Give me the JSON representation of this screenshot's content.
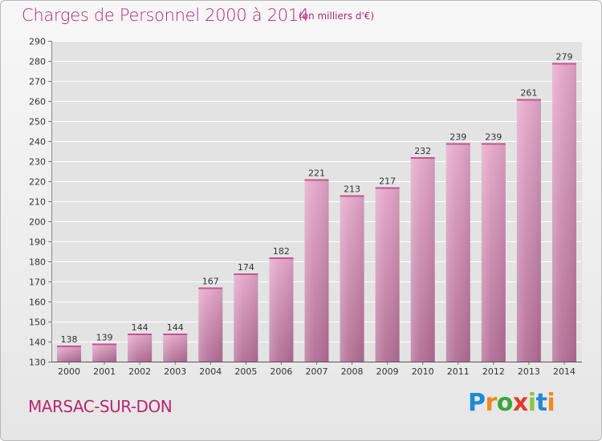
{
  "chart_data": {
    "type": "bar",
    "title": "Charges de Personnel 2000 à 2014",
    "subtitle": "(en milliers d'€)",
    "categories": [
      "2000",
      "2001",
      "2002",
      "2003",
      "2004",
      "2005",
      "2006",
      "2007",
      "2008",
      "2009",
      "2010",
      "2011",
      "2012",
      "2013",
      "2014"
    ],
    "values": [
      138,
      139,
      144,
      144,
      167,
      174,
      182,
      221,
      213,
      217,
      232,
      239,
      239,
      261,
      279
    ],
    "ylim": [
      130,
      290
    ],
    "yticks": [
      130,
      140,
      150,
      160,
      170,
      180,
      190,
      200,
      210,
      220,
      230,
      240,
      250,
      260,
      270,
      280,
      290
    ],
    "grid": true,
    "colors": {
      "bar": "#d45f9a",
      "bar_light": "#e8a6c8",
      "grid": "#ffffff",
      "text": "#333333"
    }
  },
  "footer": {
    "place": "MARSAC-SUR-DON"
  },
  "logo": {
    "letters": [
      "P",
      "r",
      "o",
      "x",
      "i",
      "t",
      "i"
    ],
    "colors": [
      "#1f8ad6",
      "#ef8a1c",
      "#3aa63a",
      "#e23b2c",
      "#8cc43c",
      "#1f8ad6",
      "#ef8a1c"
    ]
  }
}
